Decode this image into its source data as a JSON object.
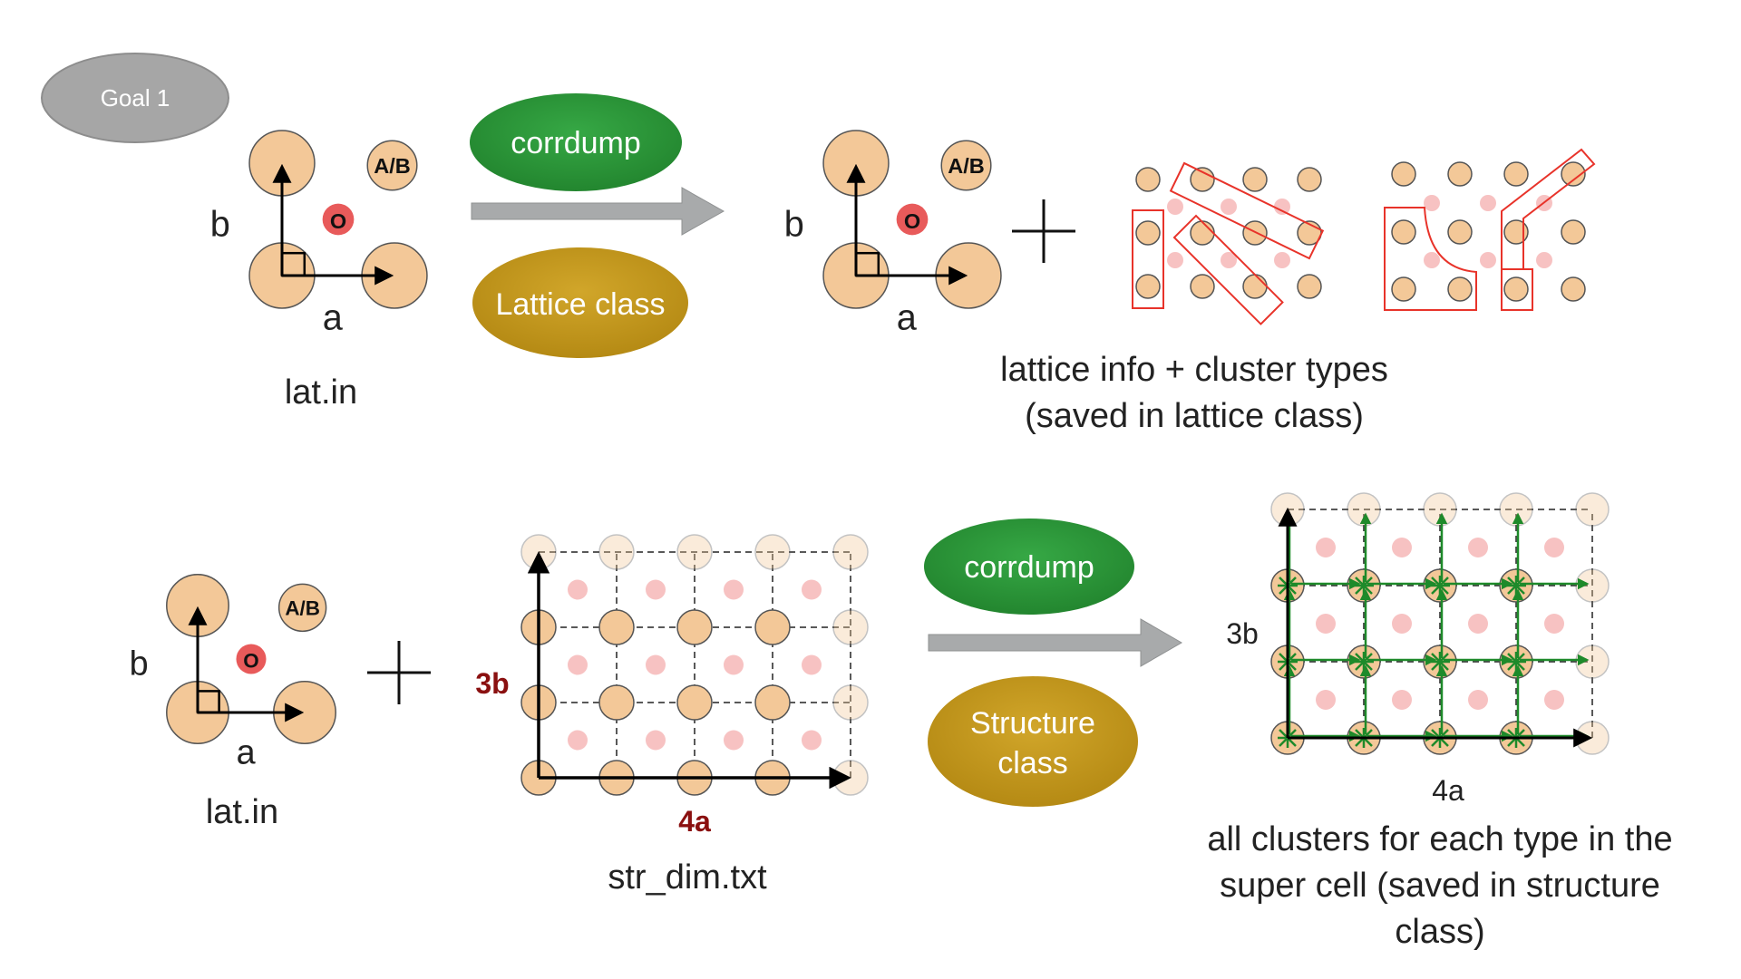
{
  "goal_badge": "Goal 1",
  "top": {
    "lattice_file": "lat.in",
    "axis_a": "a",
    "axis_b": "b",
    "site_o": "O",
    "site_ab": "A/B",
    "pill_corrdump": "corrdump",
    "pill_lattice_class": "Lattice class",
    "caption_line1": "lattice info + cluster types",
    "caption_line2": "(saved in lattice class)"
  },
  "bottom": {
    "lattice_file": "lat.in",
    "axis_a": "a",
    "axis_b": "b",
    "site_o": "O",
    "site_ab": "A/B",
    "grid_label_x": "4a",
    "grid_label_y": "3b",
    "dims_file": "str_dim.txt",
    "pill_corrdump": "corrdump",
    "pill_structure_line1": "Structure",
    "pill_structure_line2": "class",
    "result_label_x": "4a",
    "result_label_y": "3b",
    "caption_line1": "all clusters for each type in the",
    "caption_line2": "super cell (saved in structure",
    "caption_line3": "class)"
  },
  "colors": {
    "site_fill": "#f3c898",
    "site_stroke": "#555555",
    "oxygen": "#e85a5a",
    "interstitial": "#f7c2c2",
    "cluster_outline": "#e8332a",
    "green_pill": "#2f9a3e",
    "gold_pill": "#c4981e",
    "arrow_gray": "#a8aaab",
    "badge_gray": "#a4a4a4",
    "dark_red_label": "#8a1010",
    "cluster_green": "#1e8a2a"
  }
}
